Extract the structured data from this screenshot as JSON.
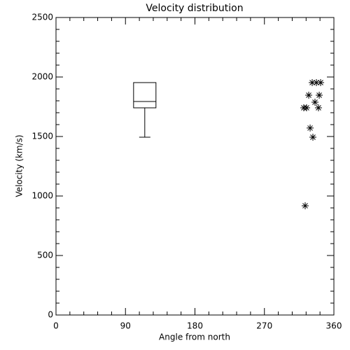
{
  "chart_data": [
    {
      "type": "box",
      "title": "Velocity distribution",
      "xlabel": "Angle from north",
      "ylabel": "Velocity (km/s)",
      "xlim": [
        0,
        360
      ],
      "ylim": [
        0,
        2500
      ],
      "xticks": [
        0,
        90,
        180,
        270,
        360
      ],
      "yticks": [
        0,
        500,
        1000,
        1500,
        2000,
        2500
      ],
      "position": 115,
      "width": 29,
      "min": 1494,
      "q1": 1741,
      "median": 1794,
      "q3": 1953,
      "max": 1953,
      "color": "#000000"
    },
    {
      "type": "scatter",
      "x": [
        321,
        324.6,
        322.8,
        327.4,
        331.9,
        337.3,
        342.8,
        335.5,
        341,
        340,
        329.2,
        332.8
      ],
      "y": [
        1741,
        1741,
        918,
        1847,
        1953,
        1953,
        1953,
        1788,
        1847,
        1741,
        1571,
        1494
      ],
      "color": "#000000"
    }
  ]
}
